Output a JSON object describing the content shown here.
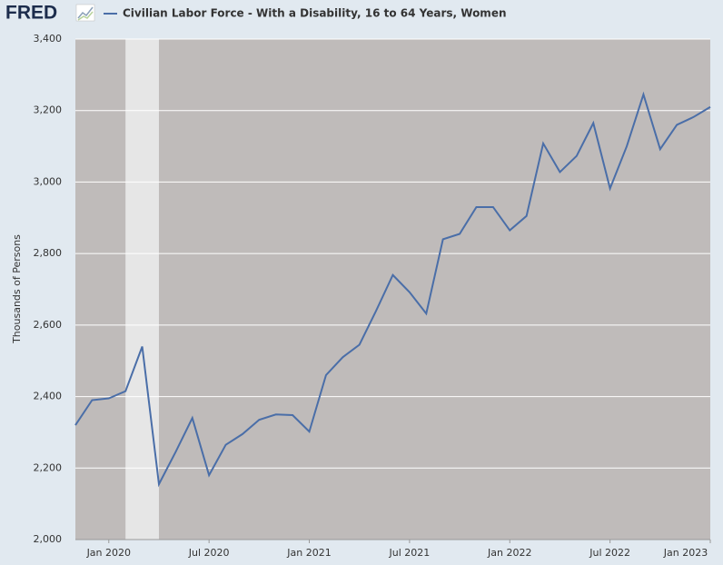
{
  "logo": "FRED",
  "chart_data": {
    "type": "line",
    "y_label": "Thousands of Persons",
    "x": [
      "2019-11",
      "2019-12",
      "2020-01",
      "2020-02",
      "2020-03",
      "2020-04",
      "2020-05",
      "2020-06",
      "2020-07",
      "2020-08",
      "2020-09",
      "2020-10",
      "2020-11",
      "2020-12",
      "2021-01",
      "2021-02",
      "2021-03",
      "2021-04",
      "2021-05",
      "2021-06",
      "2021-07",
      "2021-08",
      "2021-09",
      "2021-10",
      "2021-11",
      "2021-12",
      "2022-01",
      "2022-02",
      "2022-03",
      "2022-04",
      "2022-05",
      "2022-06",
      "2022-07",
      "2022-08",
      "2022-09",
      "2022-10",
      "2022-11",
      "2022-12",
      "2023-01"
    ],
    "series": [
      {
        "name": "Civilian Labor Force - With a Disability, 16 to 64 Years, Women",
        "color": "#4a6ea8",
        "values": [
          2320,
          2390,
          2395,
          2415,
          2540,
          2155,
          2245,
          2340,
          2180,
          2265,
          2295,
          2335,
          2350,
          2348,
          2302,
          2460,
          2510,
          2545,
          2640,
          2740,
          2692,
          2632,
          2840,
          2855,
          2930,
          2930,
          2865,
          2905,
          3108,
          3028,
          3073,
          3165,
          2982,
          3100,
          3245,
          3092,
          3160,
          3182,
          3210
        ]
      }
    ],
    "xlim": [
      "2019-11",
      "2023-01"
    ],
    "xticks": [
      {
        "value": "2020-01",
        "label": "Jan 2020"
      },
      {
        "value": "2020-07",
        "label": "Jul 2020"
      },
      {
        "value": "2021-01",
        "label": "Jan 2021"
      },
      {
        "value": "2021-07",
        "label": "Jul 2021"
      },
      {
        "value": "2022-01",
        "label": "Jan 2022"
      },
      {
        "value": "2022-07",
        "label": "Jul 2022"
      },
      {
        "value": "2023-01",
        "label": "Jan 2023"
      }
    ],
    "ylim": [
      2000,
      3400
    ],
    "yticks": [
      {
        "value": 2000,
        "label": "2,000"
      },
      {
        "value": 2200,
        "label": "2,200"
      },
      {
        "value": 2400,
        "label": "2,400"
      },
      {
        "value": 2600,
        "label": "2,600"
      },
      {
        "value": 2800,
        "label": "2,800"
      },
      {
        "value": 3000,
        "label": "3,000"
      },
      {
        "value": 3200,
        "label": "3,200"
      },
      {
        "value": 3400,
        "label": "3,400"
      }
    ],
    "grid": true,
    "recession": [
      "2020-02",
      "2020-04"
    ]
  }
}
